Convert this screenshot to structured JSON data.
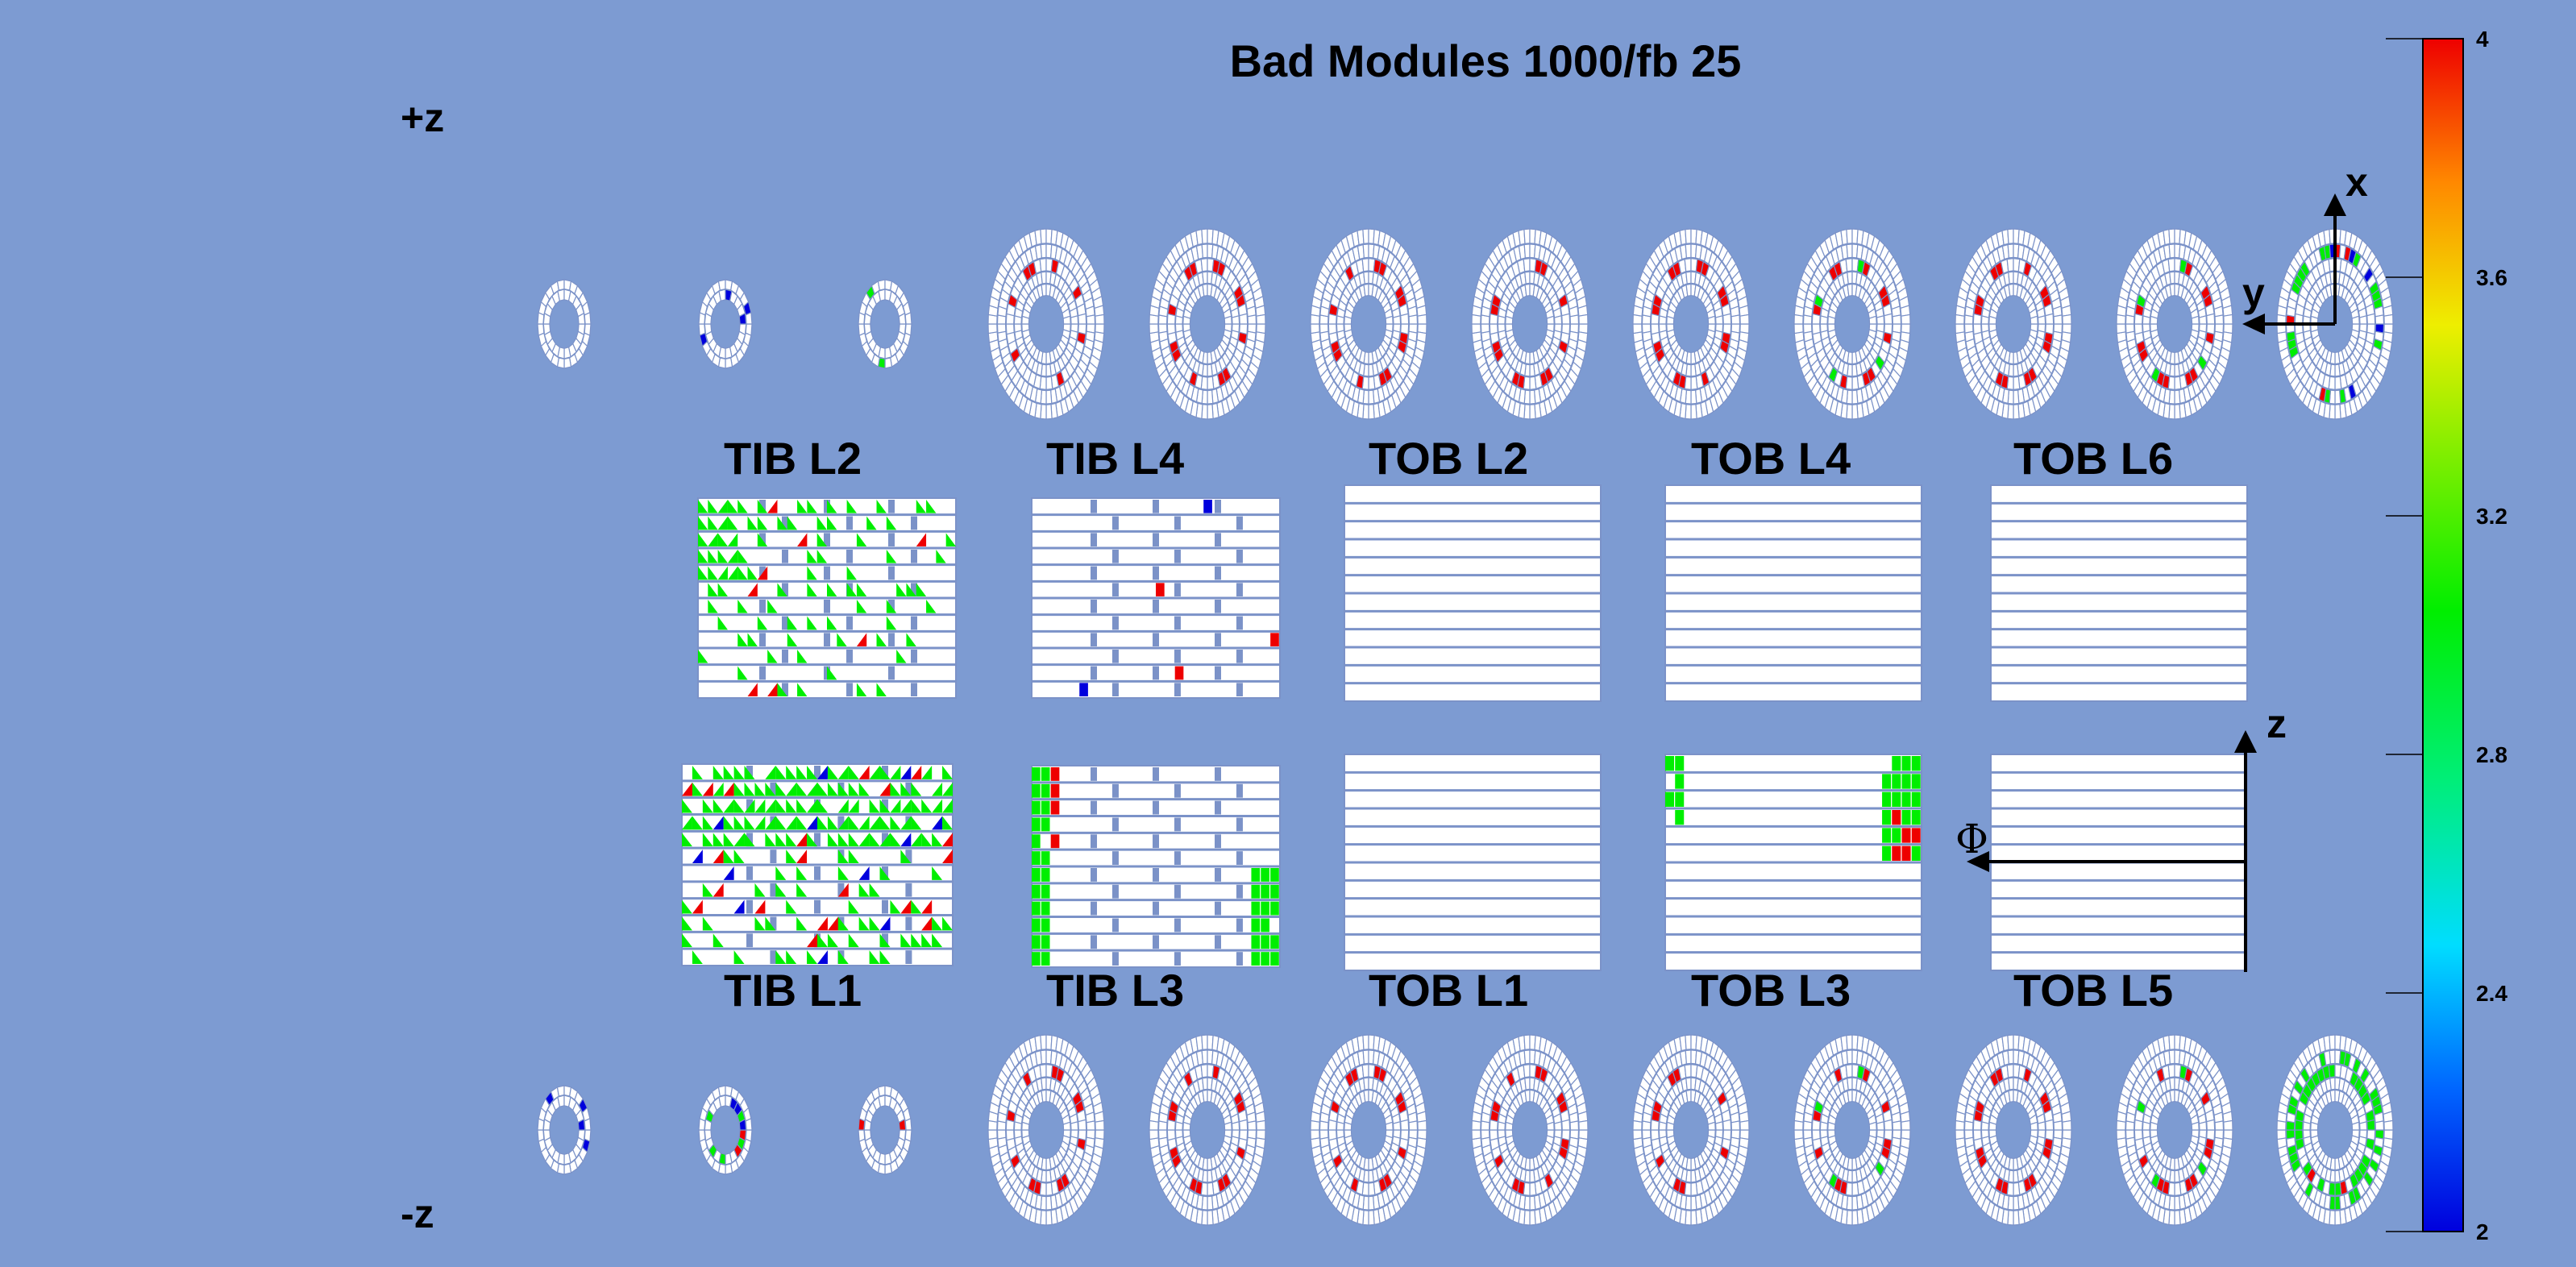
{
  "title": "Bad Modules 1000/fb 25",
  "side_labels": {
    "plus_z": "+z",
    "minus_z": "-z"
  },
  "axis_labels": {
    "x": "x",
    "y": "y",
    "z": "z",
    "phi": "Φ"
  },
  "barrel_top": [
    "TIB L2",
    "TIB L4",
    "TOB L2",
    "TOB L4",
    "TOB L6"
  ],
  "barrel_bottom": [
    "TIB L1",
    "TIB L3",
    "TOB L1",
    "TOB L3",
    "TOB L5"
  ],
  "palette": {
    "background": "#7d9bd2",
    "module": "#ffffff",
    "grid": "#7b92c8",
    "bad_red": "#ee0000",
    "bad_green": "#00ee00",
    "bad_blue": "#0000dd"
  },
  "color_scale": {
    "min": 2,
    "max": 4,
    "ticks": [
      "4",
      "3.6",
      "3.2",
      "2.8",
      "2.4",
      "2"
    ]
  },
  "disks": {
    "plus_z": [
      {
        "type": "small",
        "pattern": "sparse-green"
      },
      {
        "type": "small",
        "pattern": "sparse-blue-green"
      },
      {
        "type": "small",
        "pattern": "sparse-green"
      },
      {
        "type": "large",
        "pattern": "red-ring"
      },
      {
        "type": "large",
        "pattern": "red-ring"
      },
      {
        "type": "large",
        "pattern": "red-ring"
      },
      {
        "type": "large",
        "pattern": "red-ring"
      },
      {
        "type": "large",
        "pattern": "red-ring"
      },
      {
        "type": "large",
        "pattern": "red-green-ring"
      },
      {
        "type": "large",
        "pattern": "red-ring"
      },
      {
        "type": "large",
        "pattern": "red-green-ring"
      },
      {
        "type": "large",
        "pattern": "mixed-ring"
      }
    ],
    "minus_z": [
      {
        "type": "small",
        "pattern": "sparse-blue"
      },
      {
        "type": "small",
        "pattern": "mixed-small"
      },
      {
        "type": "small",
        "pattern": "sparse-red"
      },
      {
        "type": "large",
        "pattern": "red-ring"
      },
      {
        "type": "large",
        "pattern": "red-ring"
      },
      {
        "type": "large",
        "pattern": "red-ring"
      },
      {
        "type": "large",
        "pattern": "red-ring"
      },
      {
        "type": "large",
        "pattern": "red-ring"
      },
      {
        "type": "large",
        "pattern": "red-green-ring"
      },
      {
        "type": "large",
        "pattern": "red-ring"
      },
      {
        "type": "large",
        "pattern": "red-green-ring"
      },
      {
        "type": "large",
        "pattern": "green-ring"
      }
    ]
  }
}
